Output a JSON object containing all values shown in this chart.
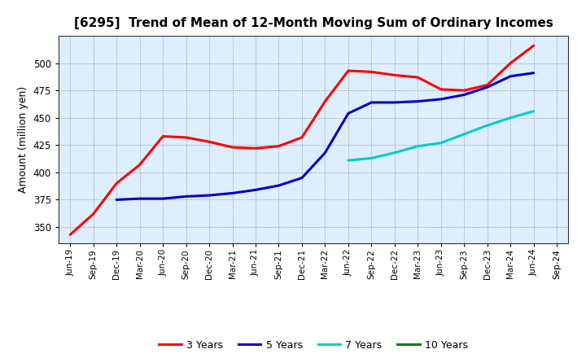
{
  "title": "[6295]  Trend of Mean of 12-Month Moving Sum of Ordinary Incomes",
  "ylabel": "Amount (million yen)",
  "background_color": "#ffffff",
  "plot_bg_color": "#ddeeff",
  "grid_color": "#888888",
  "x_labels": [
    "Jun-19",
    "Sep-19",
    "Dec-19",
    "Mar-20",
    "Jun-20",
    "Sep-20",
    "Dec-20",
    "Mar-21",
    "Jun-21",
    "Sep-21",
    "Dec-21",
    "Mar-22",
    "Jun-22",
    "Sep-22",
    "Dec-22",
    "Mar-23",
    "Jun-23",
    "Sep-23",
    "Dec-23",
    "Mar-24",
    "Jun-24",
    "Sep-24"
  ],
  "ylim": [
    335,
    525
  ],
  "yticks": [
    350,
    375,
    400,
    425,
    450,
    475,
    500
  ],
  "series": {
    "3 Years": {
      "color": "#ff0000",
      "data_x": [
        0,
        1,
        2,
        3,
        4,
        5,
        6,
        7,
        8,
        9,
        10,
        11,
        12,
        13,
        14,
        15,
        16,
        17,
        18,
        19,
        20
      ],
      "data_y": [
        343,
        362,
        390,
        407,
        433,
        432,
        428,
        423,
        422,
        424,
        432,
        465,
        493,
        492,
        489,
        487,
        476,
        475,
        480,
        500,
        516
      ]
    },
    "5 Years": {
      "color": "#0000cc",
      "data_x": [
        2,
        3,
        4,
        5,
        6,
        7,
        8,
        9,
        10,
        11,
        12,
        13,
        14,
        15,
        16,
        17,
        18,
        19,
        20
      ],
      "data_y": [
        375,
        376,
        376,
        378,
        379,
        381,
        384,
        388,
        395,
        418,
        454,
        464,
        464,
        465,
        467,
        471,
        478,
        488,
        491
      ]
    },
    "7 Years": {
      "color": "#00cccc",
      "data_x": [
        12,
        13,
        14,
        15,
        16,
        17,
        18,
        19,
        20
      ],
      "data_y": [
        411,
        413,
        418,
        424,
        427,
        435,
        443,
        450,
        456
      ]
    },
    "10 Years": {
      "color": "#008000",
      "data_x": [],
      "data_y": []
    }
  },
  "legend_entries": [
    "3 Years",
    "5 Years",
    "7 Years",
    "10 Years"
  ],
  "legend_colors": [
    "#ff0000",
    "#0000cc",
    "#00cccc",
    "#008000"
  ]
}
